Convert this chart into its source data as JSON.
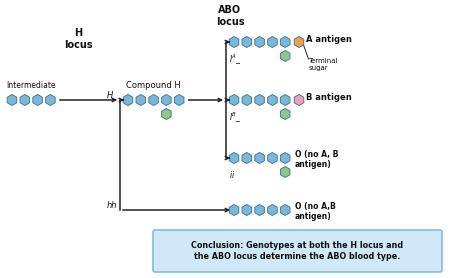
{
  "bg_color": "#ffffff",
  "hex_blue": "#7ab8d9",
  "hex_green": "#8dc888",
  "hex_orange": "#f0a045",
  "hex_pink": "#f0a0b8",
  "arrow_color": "#222222",
  "line_color": "#222222",
  "text_color": "#111111",
  "conclusion_bg": "#d0e8f8",
  "conclusion_border": "#88bbdd",
  "conclusion_text": "Conclusion: Genotypes at both the H locus and\nthe ABO locus determine the ABO blood type.",
  "title_abo": "ABO\nlocus",
  "title_h": "H\nlocus",
  "label_compound": "Compound H",
  "label_intermediate": "Intermediate",
  "label_h_": "H_",
  "label_hh": "hh",
  "label_ia": "$I^A$_",
  "label_ib": "$I^B$_",
  "label_ii": "ii",
  "label_a_antigen": "A antigen",
  "label_b_antigen": "B antigen",
  "label_o1": "O (no A, B\nantigen)",
  "label_o2": "O (no A,B\nantigen)",
  "label_terminal": "Terminal\nsugar"
}
